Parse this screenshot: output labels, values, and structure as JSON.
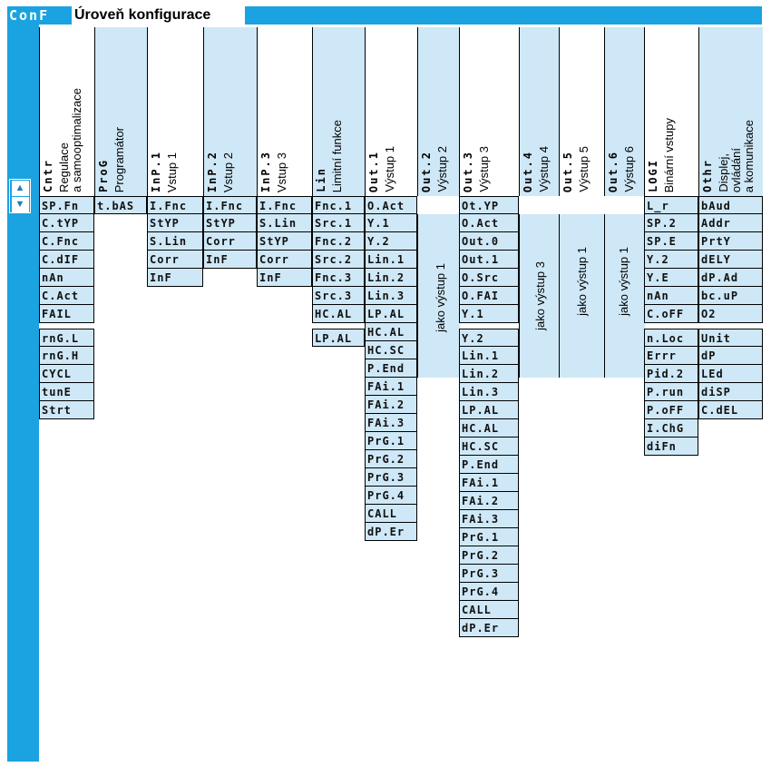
{
  "header": {
    "code": "ConF",
    "title": "Úroveň konfigurace"
  },
  "nav": {
    "up": "▲",
    "down": "▼"
  },
  "columns": [
    {
      "code": "Cntr",
      "label_line1": "Regulace",
      "label_line2": "a samooptimalizace",
      "items": [
        "SP.Fn",
        "C.tYP",
        "C.Fnc",
        "C.dIF",
        "nAn",
        "C.Act",
        "FAIL"
      ],
      "items2": [
        "rnG.L",
        "rnG.H",
        "CYCL",
        "tunE",
        "Strt"
      ]
    },
    {
      "code": "ProG",
      "label_line1": "Programátor",
      "items": [
        "t.bAS"
      ]
    },
    {
      "code": "InP.1",
      "label_line1": "Vstup 1",
      "items": [
        "I.Fnc",
        "StYP",
        "S.Lin",
        "Corr",
        "InF"
      ]
    },
    {
      "code": "InP.2",
      "label_line1": "Vstup 2",
      "items": [
        "I.Fnc",
        "StYP",
        "Corr",
        "InF"
      ]
    },
    {
      "code": "InP.3",
      "label_line1": "Vstup 3",
      "items": [
        "I.Fnc",
        "S.Lin",
        "StYP",
        "Corr",
        "InF"
      ]
    },
    {
      "code": "Lin",
      "label_line1": "Limitní funkce",
      "items": [
        "Fnc.1",
        "Src.1",
        "Fnc.2",
        "Src.2",
        "Fnc.3",
        "Src.3",
        "HC.AL"
      ],
      "items2": [
        "LP.AL"
      ]
    },
    {
      "code": "Out.1",
      "label_line1": "Výstup 1",
      "items": [
        "O.Act",
        "Y.1",
        "Y.2",
        "Lin.1",
        "Lin.2",
        "Lin.3",
        "LP.AL",
        "HC.AL",
        "HC.SC",
        "P.End",
        "FAi.1",
        "FAi.2",
        "FAi.3",
        "PrG.1",
        "PrG.2",
        "PrG.3",
        "PrG.4",
        "CALL",
        "dP.Er"
      ]
    },
    {
      "code": "Out.2",
      "label_line1": "Výstup 2",
      "note": "jako výstup 1"
    },
    {
      "code": "Out.3",
      "label_line1": "Výstup 3",
      "items": [
        "Ot.YP",
        "O.Act",
        "Out.0",
        "Out.1",
        "O.Src",
        "O.FAI",
        "Y.1"
      ],
      "items2": [
        "Y.2",
        "Lin.1",
        "Lin.2",
        "Lin.3",
        "LP.AL",
        "HC.AL",
        "HC.SC",
        "P.End",
        "FAi.1",
        "FAi.2",
        "FAi.3",
        "PrG.1",
        "PrG.2",
        "PrG.3",
        "PrG.4",
        "CALL",
        "dP.Er"
      ]
    },
    {
      "code": "Out.4",
      "label_line1": "Výstup 4",
      "note": "jako výstup 3"
    },
    {
      "code": "Out.5",
      "label_line1": "Výstup 5",
      "note": "jako výstup 1"
    },
    {
      "code": "Out.6",
      "label_line1": "Výstup 6",
      "note": "jako výstup 1"
    },
    {
      "code": "LOGI",
      "label_line1": "Binární vstupy",
      "items": [
        "L_r",
        "SP.2",
        "SP.E",
        "Y.2",
        "Y.E",
        "nAn",
        "C.oFF"
      ],
      "items2": [
        "n.Loc",
        "Errr",
        "Pid.2",
        "P.run",
        "P.oFF",
        "I.ChG",
        "diFn"
      ]
    },
    {
      "code": "Othr",
      "label_line1": "Displej,",
      "label_line2": "ovládání",
      "label_line3": "a komunikace",
      "items": [
        "bAud",
        "Addr",
        "PrtY",
        "dELY",
        "dP.Ad",
        "bc.uP",
        "O2"
      ],
      "items2": [
        "Unit",
        "dP",
        "LEd",
        "diSP",
        "C.dEL"
      ]
    }
  ]
}
